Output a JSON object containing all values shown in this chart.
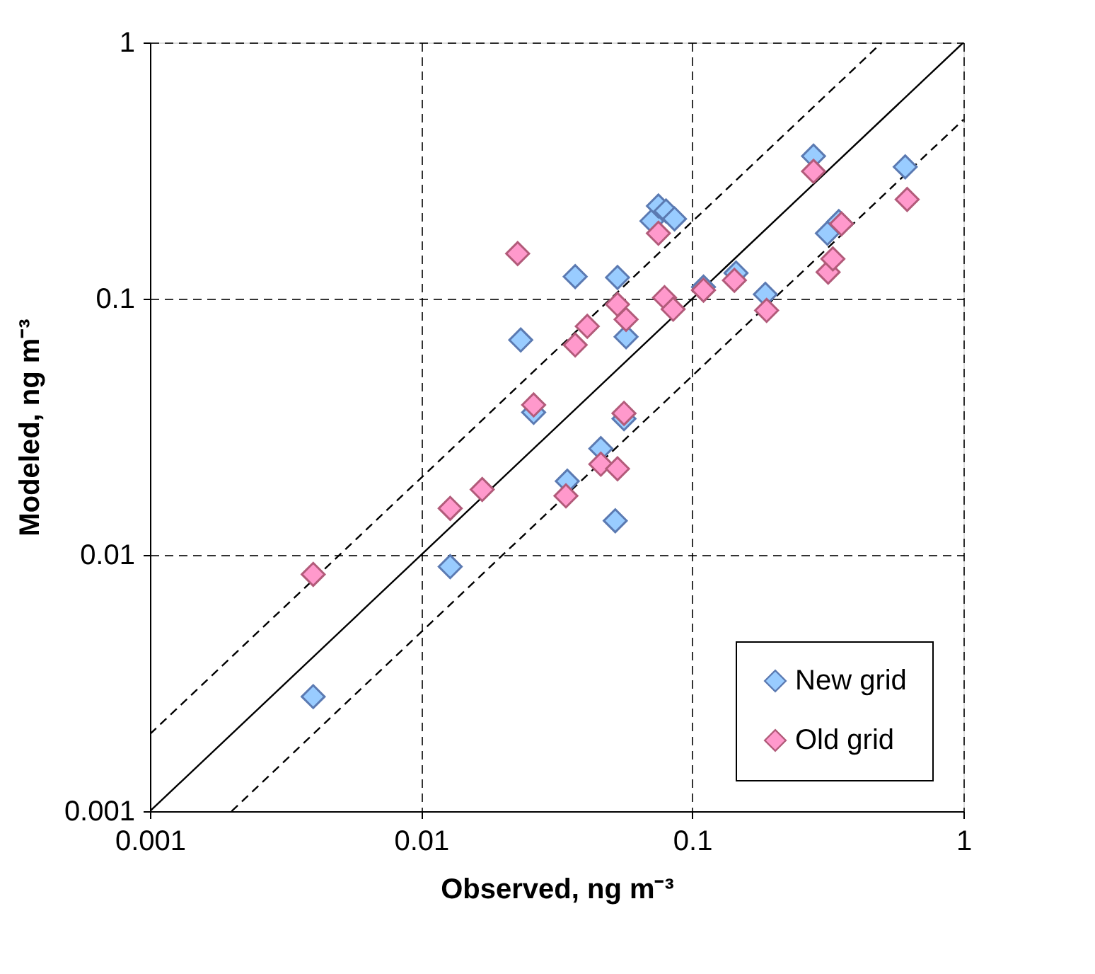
{
  "chart_data": {
    "type": "scatter",
    "xlabel": "Observed, ng m⁻³",
    "ylabel": "Modeled, ng m⁻³",
    "log": "xy",
    "xlim": [
      0.001,
      1
    ],
    "ylim": [
      0.001,
      1
    ],
    "xticks": [
      0.001,
      0.01,
      0.1,
      1
    ],
    "yticks": [
      0.001,
      0.01,
      0.1,
      1
    ],
    "grid": true,
    "legend": "bottom right",
    "marker": "diamond",
    "series": [
      {
        "name": "New grid",
        "color": "#99ccff",
        "x": [
          0.004,
          0.0128,
          0.0233,
          0.026,
          0.037,
          0.0346,
          0.046,
          0.053,
          0.052,
          0.057,
          0.056,
          0.071,
          0.075,
          0.08,
          0.086,
          0.11,
          0.145,
          0.186,
          0.28,
          0.315,
          0.347,
          0.61
        ],
        "values": [
          0.0028,
          0.009,
          0.069,
          0.036,
          0.122,
          0.0194,
          0.026,
          0.121,
          0.0136,
          0.071,
          0.034,
          0.201,
          0.23,
          0.22,
          0.205,
          0.111,
          0.126,
          0.104,
          0.36,
          0.18,
          0.2,
          0.327
        ]
      },
      {
        "name": "Old grid",
        "color": "#ff99cc",
        "x": [
          0.004,
          0.0128,
          0.0168,
          0.0227,
          0.026,
          0.0342,
          0.037,
          0.041,
          0.046,
          0.053,
          0.053,
          0.056,
          0.057,
          0.075,
          0.079,
          0.085,
          0.11,
          0.143,
          0.188,
          0.28,
          0.317,
          0.33,
          0.355,
          0.62
        ],
        "values": [
          0.0084,
          0.0152,
          0.018,
          0.15,
          0.0385,
          0.017,
          0.066,
          0.078,
          0.0226,
          0.0217,
          0.095,
          0.0357,
          0.083,
          0.18,
          0.101,
          0.091,
          0.108,
          0.118,
          0.09,
          0.314,
          0.127,
          0.143,
          0.196,
          0.244
        ]
      },
      {
        "type": "line",
        "color": "#000000",
        "line_style": "solid",
        "marker": "none",
        "x": [
          0.001,
          1
        ],
        "values": [
          0.001,
          1
        ]
      },
      {
        "type": "line",
        "color": "#000000",
        "line_style": "dashed",
        "marker": "none",
        "x": [
          0.001,
          0.5
        ],
        "values": [
          0.002,
          1
        ]
      },
      {
        "type": "line",
        "color": "#000000",
        "line_style": "dashed",
        "marker": "none",
        "x": [
          0.002,
          1
        ],
        "values": [
          0.001,
          0.5
        ]
      }
    ]
  }
}
